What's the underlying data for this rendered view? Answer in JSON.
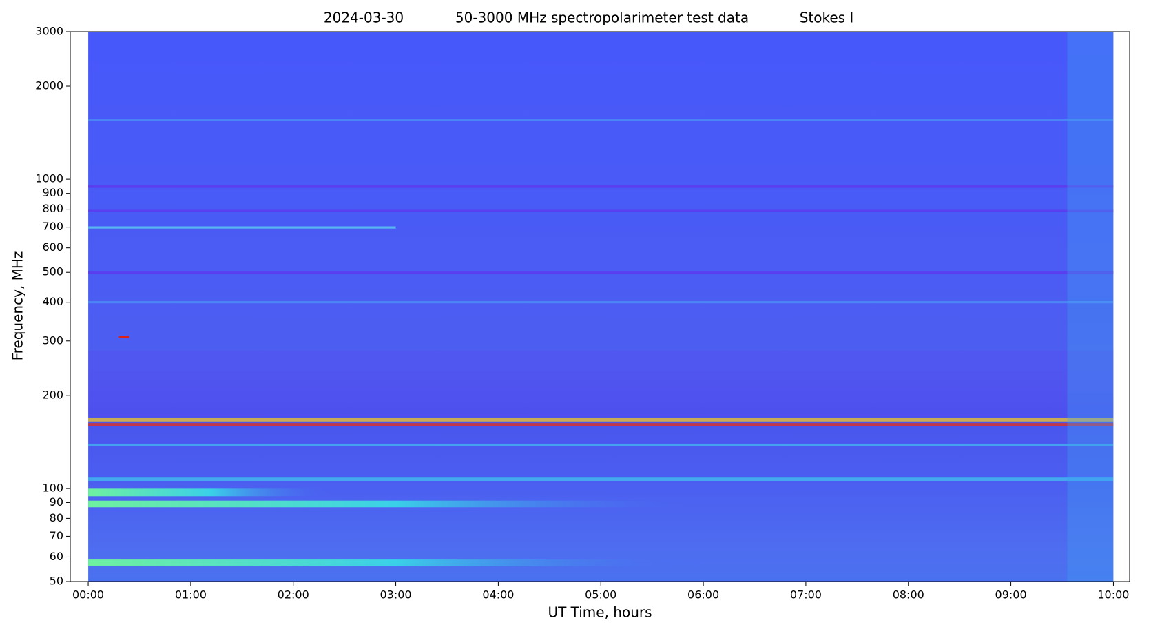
{
  "chart_data": {
    "type": "spectrogram",
    "title_parts": [
      "2024-03-30",
      "50-3000 MHz spectropolarimeter test data",
      "Stokes I"
    ],
    "xlabel": "UT Time, hours",
    "ylabel": "Frequency, MHz",
    "xlim": [
      -10.5,
      609.5
    ],
    "xticks": [
      {
        "value": 0,
        "label": "00:00"
      },
      {
        "value": 60,
        "label": "01:00"
      },
      {
        "value": 120,
        "label": "02:00"
      },
      {
        "value": 180,
        "label": "03:00"
      },
      {
        "value": 240,
        "label": "04:00"
      },
      {
        "value": 300,
        "label": "05:00"
      },
      {
        "value": 360,
        "label": "06:00"
      },
      {
        "value": 420,
        "label": "07:00"
      },
      {
        "value": 480,
        "label": "08:00"
      },
      {
        "value": 540,
        "label": "09:00"
      },
      {
        "value": 600,
        "label": "10:00"
      }
    ],
    "ylim": [
      50,
      3000
    ],
    "yscale": "log",
    "yticks": [
      50,
      60,
      70,
      80,
      90,
      100,
      200,
      300,
      400,
      500,
      600,
      700,
      800,
      900,
      1000,
      2000,
      3000
    ]
  }
}
